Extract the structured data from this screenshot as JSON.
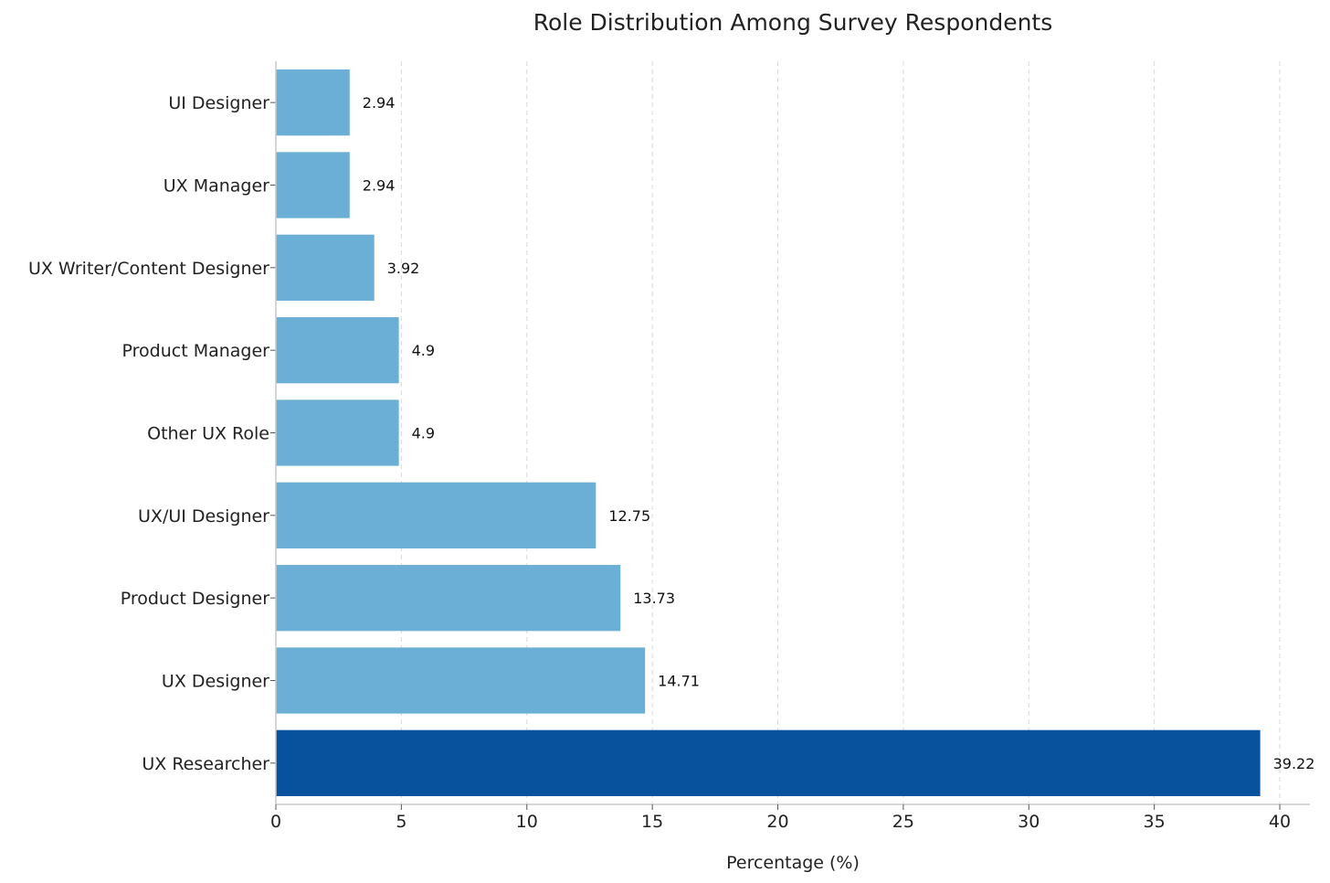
{
  "chart_data": {
    "type": "bar",
    "orientation": "horizontal",
    "title": "Role Distribution Among Survey Respondents",
    "xlabel": "Percentage (%)",
    "ylabel": "",
    "categories": [
      "UX Researcher",
      "UX Designer",
      "Product Designer",
      "UX/UI Designer",
      "Other UX Role",
      "Product Manager",
      "UX Writer/Content Designer",
      "UX Manager",
      "UI Designer"
    ],
    "values": [
      39.22,
      14.71,
      13.73,
      12.75,
      4.9,
      4.9,
      3.92,
      2.94,
      2.94
    ],
    "value_labels": [
      "39.22",
      "14.71",
      "13.73",
      "12.75",
      "4.9",
      "4.9",
      "3.92",
      "2.94",
      "2.94"
    ],
    "xlim": [
      0,
      41.2
    ],
    "xticks": [
      0,
      5,
      10,
      15,
      20,
      25,
      30,
      35,
      40
    ],
    "xtick_labels": [
      "0",
      "5",
      "10",
      "15",
      "20",
      "25",
      "30",
      "35",
      "40"
    ],
    "grid": "vertical dashed",
    "legend": "none",
    "colors": {
      "highlight": "#08519c",
      "default": "#6baed6",
      "grid": "#d9d9d9",
      "axis": "#c8c8c8"
    },
    "highlight_category": "UX Researcher"
  }
}
